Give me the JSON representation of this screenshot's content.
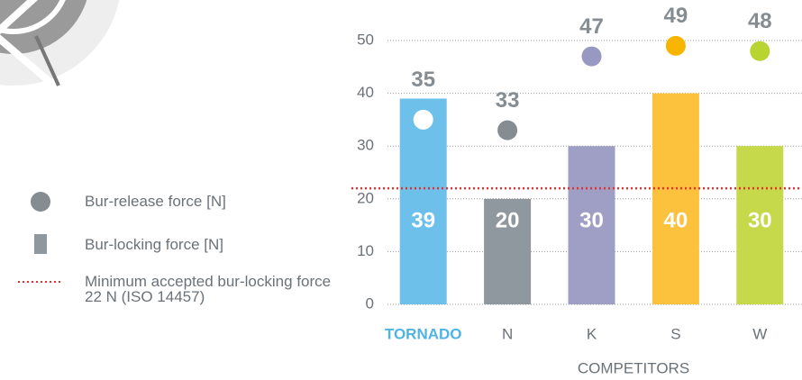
{
  "chart_data": {
    "type": "bar",
    "categories": [
      "TORNADO",
      "N",
      "K",
      "S",
      "W"
    ],
    "category_label_colors": [
      "#4fb3e4",
      "#6b7277",
      "#6b7277",
      "#6b7277",
      "#6b7277"
    ],
    "xlabel": "COMPETITORS",
    "series": [
      {
        "name": "Bur-release force [N]",
        "type": "scatter",
        "color": "#858d93",
        "values": [
          35,
          33,
          47,
          49,
          48
        ],
        "colors": [
          "#ffffff",
          "#858d93",
          "#9998c2",
          "#f7b500",
          "#b8d430"
        ]
      },
      {
        "name": "Bur-locking force [N]",
        "type": "bar",
        "color": "#8e989e",
        "values": [
          39,
          20,
          30,
          40,
          30
        ],
        "colors": [
          "#6cc0ea",
          "#8e989e",
          "#9f9ec4",
          "#fcc23e",
          "#c5d94a"
        ]
      }
    ],
    "reference_line": {
      "value": 22,
      "label": "Minimum accepted bur-locking force 22 N (ISO 14457)",
      "color": "#e53030"
    },
    "ylim": [
      0,
      50
    ],
    "yticks": [
      0,
      10,
      20,
      30,
      40,
      50
    ],
    "grid": true
  }
}
